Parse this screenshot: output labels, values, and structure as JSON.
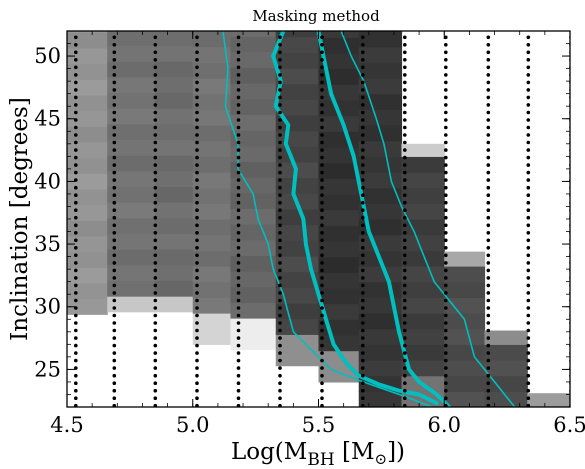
{
  "chart_data": {
    "type": "heatmap",
    "title": "Masking method",
    "xlabel": "Log(M",
    "xlabel_sub": "BH",
    "xlabel_unit_open": " [M",
    "xlabel_unit_sub": "⊙",
    "xlabel_unit_close": "])",
    "ylabel": "Inclination [degrees]",
    "xlim": [
      4.5,
      6.5
    ],
    "ylim": [
      22,
      52
    ],
    "xticks": [
      4.5,
      5.0,
      5.5,
      6.0,
      6.5
    ],
    "xtick_labels": [
      "4.5",
      "5.0",
      "5.5",
      "6.0",
      "6.5"
    ],
    "yticks": [
      25,
      30,
      35,
      40,
      45,
      50
    ],
    "ytick_labels": [
      "25",
      "30",
      "35",
      "40",
      "45",
      "50"
    ],
    "grid": false,
    "legend": "none",
    "colormap": "greyscale (darker = better fit, white = masked)",
    "contour_color": "#00bfbf",
    "sample_points": {
      "x": [
        4.535,
        4.688,
        4.851,
        5.017,
        5.182,
        5.347,
        5.514,
        5.676,
        5.843,
        6.006,
        6.175,
        6.334,
        6.504
      ],
      "y_start": 22.1,
      "y_step": 0.6,
      "y_count": 50
    },
    "columns": [
      {
        "x0": 4.5,
        "x1": 4.66,
        "cut": 29.4,
        "shade": 0.58,
        "edge": [
          [
            28.4,
            29.4,
            0.85
          ]
        ]
      },
      {
        "x0": 4.66,
        "x1": 4.85,
        "cut": 29.6,
        "shade": 0.45,
        "edge": [
          [
            29.6,
            30.8,
            0.78
          ]
        ]
      },
      {
        "x0": 4.85,
        "x1": 5.0,
        "cut": 29.6,
        "shade": 0.43,
        "edge": [
          [
            29.6,
            30.8,
            0.78
          ]
        ]
      },
      {
        "x0": 5.0,
        "x1": 5.15,
        "cut": 27.0,
        "shade": 0.45,
        "edge": [
          [
            27.0,
            28.3,
            0.83
          ]
        ]
      },
      {
        "x0": 5.15,
        "x1": 5.33,
        "cut": 26.6,
        "shade": 0.4,
        "edge": [
          [
            26.6,
            28.0,
            0.93
          ]
        ]
      },
      {
        "x0": 5.33,
        "x1": 5.5,
        "cut": 25.3,
        "shade": 0.27,
        "edge": [
          [
            25.3,
            26.6,
            0.56
          ]
        ]
      },
      {
        "x0": 5.5,
        "x1": 5.66,
        "cut": 24.0,
        "shade": 0.2,
        "edge": [
          [
            24.0,
            25.3,
            0.55
          ]
        ]
      },
      {
        "x0": 5.66,
        "x1": 5.83,
        "cut": 22.0,
        "shade": 0.21,
        "edge": []
      },
      {
        "x0": 5.83,
        "x1": 6.0,
        "cut": 22.0,
        "shade": 0.25,
        "top": 43.0,
        "edge": [
          [
            22.0,
            23.3,
            0.45
          ],
          [
            41.8,
            43.0,
            0.8
          ]
        ]
      },
      {
        "x0": 6.0,
        "x1": 6.16,
        "cut": 22.0,
        "shade": 0.3,
        "top": 34.4,
        "edge": [
          [
            33.1,
            34.4,
            0.66
          ]
        ]
      },
      {
        "x0": 6.16,
        "x1": 6.33,
        "cut": 22.0,
        "shade": 0.3,
        "top": 28.1,
        "edge": [
          [
            26.9,
            28.1,
            0.55
          ]
        ]
      },
      {
        "x0": 6.33,
        "x1": 6.5,
        "cut": 22.0,
        "shade": 0.6,
        "top": 23.1,
        "edge": []
      }
    ],
    "contours": [
      {
        "name": "outer",
        "width": 1.6,
        "points": [
          [
            5.12,
            52
          ],
          [
            5.14,
            49
          ],
          [
            5.13,
            46
          ],
          [
            5.18,
            43
          ],
          [
            5.18,
            41
          ],
          [
            5.24,
            39
          ],
          [
            5.26,
            37
          ],
          [
            5.3,
            35
          ],
          [
            5.32,
            33
          ],
          [
            5.36,
            31
          ],
          [
            5.38,
            29.5
          ],
          [
            5.4,
            28
          ],
          [
            5.45,
            27
          ],
          [
            5.5,
            26
          ],
          [
            5.55,
            25
          ],
          [
            5.65,
            24.2
          ],
          [
            5.75,
            23.5
          ],
          [
            5.85,
            22.8
          ],
          [
            5.95,
            22
          ]
        ]
      },
      {
        "name": "inner",
        "width": 4.0,
        "points": [
          [
            5.36,
            52
          ],
          [
            5.32,
            50
          ],
          [
            5.35,
            48
          ],
          [
            5.33,
            46
          ],
          [
            5.38,
            44.5
          ],
          [
            5.37,
            43
          ],
          [
            5.41,
            41
          ],
          [
            5.4,
            39
          ],
          [
            5.44,
            37
          ],
          [
            5.45,
            35
          ],
          [
            5.47,
            33
          ],
          [
            5.5,
            31
          ],
          [
            5.53,
            29
          ],
          [
            5.56,
            27
          ],
          [
            5.61,
            25.5
          ],
          [
            5.66,
            24.5
          ],
          [
            5.74,
            23.8
          ],
          [
            5.82,
            23.3
          ],
          [
            5.9,
            23
          ],
          [
            5.97,
            22.3
          ]
        ]
      },
      {
        "name": "inner-right",
        "width": 4.0,
        "points": [
          [
            5.5,
            52
          ],
          [
            5.52,
            50
          ],
          [
            5.55,
            47
          ],
          [
            5.6,
            44.5
          ],
          [
            5.64,
            42
          ],
          [
            5.66,
            40
          ],
          [
            5.68,
            38
          ],
          [
            5.7,
            36
          ],
          [
            5.74,
            34
          ],
          [
            5.78,
            32
          ],
          [
            5.8,
            30
          ],
          [
            5.82,
            28
          ],
          [
            5.84,
            26.5
          ],
          [
            5.86,
            25
          ],
          [
            5.9,
            24
          ],
          [
            5.97,
            23
          ],
          [
            6.02,
            22
          ]
        ]
      },
      {
        "name": "outer-right",
        "width": 1.6,
        "points": [
          [
            5.59,
            52
          ],
          [
            5.63,
            50
          ],
          [
            5.68,
            48
          ],
          [
            5.73,
            45
          ],
          [
            5.76,
            43
          ],
          [
            5.79,
            40
          ],
          [
            5.83,
            38
          ],
          [
            5.88,
            36
          ],
          [
            5.92,
            34
          ],
          [
            5.96,
            32
          ],
          [
            6.0,
            31
          ],
          [
            6.04,
            30
          ],
          [
            6.08,
            29
          ],
          [
            6.1,
            27.5
          ],
          [
            6.12,
            26
          ],
          [
            6.16,
            25
          ],
          [
            6.2,
            24
          ],
          [
            6.24,
            23
          ],
          [
            6.28,
            22
          ]
        ]
      }
    ]
  }
}
